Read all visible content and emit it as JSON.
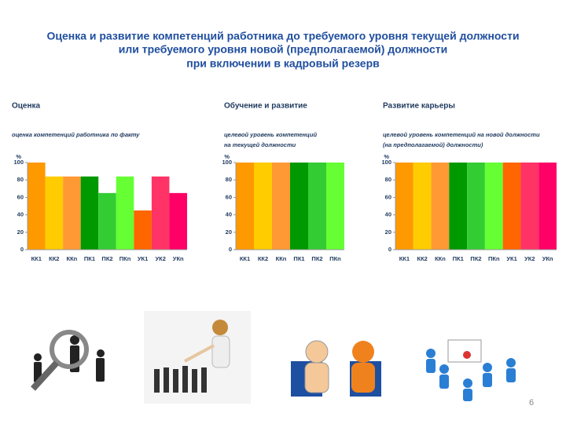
{
  "title": [
    "Оценка и развитие компетенций работника до требуемого уровня текущей должности",
    "или требуемого уровня новой (предполагаемой) должности",
    "при включении в кадровый резерв"
  ],
  "page_number": "6",
  "chart_data": [
    {
      "type": "bar",
      "title": "Оценка",
      "subtitle": [
        "оценка компетенций работника по факту"
      ],
      "y_label": "%",
      "categories": [
        "КК1",
        "КК2",
        "ККn",
        "ПК1",
        "ПК2",
        "ПКn",
        "УК1",
        "УК2",
        "УКn"
      ],
      "values": [
        100,
        84,
        84,
        84,
        65,
        84,
        45,
        84,
        65
      ],
      "colors": [
        "#ff9900",
        "#ffcc00",
        "#ff9933",
        "#009900",
        "#33cc33",
        "#66ff33",
        "#ff6600",
        "#ff3366",
        "#ff0066"
      ],
      "ylim": [
        0,
        100
      ],
      "yticks": [
        0,
        20,
        40,
        60,
        80,
        100
      ]
    },
    {
      "type": "bar",
      "title": "Обучение и развитие",
      "subtitle": [
        "целевой уровень компетенций",
        "на текущей должности"
      ],
      "y_label": "%",
      "categories": [
        "КК1",
        "КК2",
        "ККn",
        "ПК1",
        "ПК2",
        "ПКn"
      ],
      "values": [
        100,
        100,
        100,
        100,
        100,
        100
      ],
      "colors": [
        "#ff9900",
        "#ffcc00",
        "#ff9933",
        "#009900",
        "#33cc33",
        "#66ff33"
      ],
      "ylim": [
        0,
        100
      ],
      "yticks": [
        0,
        20,
        40,
        60,
        80,
        100
      ]
    },
    {
      "type": "bar",
      "title": "Развитие карьеры",
      "subtitle": [
        "целевой уровень компетенций на новой должности",
        "(на предполагаемой) должности)"
      ],
      "y_label": "%",
      "categories": [
        "КК1",
        "КК2",
        "ККn",
        "ПК1",
        "ПК2",
        "ПКn",
        "УК1",
        "УК2",
        "УКn"
      ],
      "values": [
        100,
        100,
        100,
        100,
        100,
        100,
        100,
        100,
        100
      ],
      "colors": [
        "#ff9900",
        "#ffcc00",
        "#ff9933",
        "#009900",
        "#33cc33",
        "#66ff33",
        "#ff6600",
        "#ff3366",
        "#ff0066"
      ],
      "ylim": [
        0,
        100
      ],
      "yticks": [
        0,
        20,
        40,
        60,
        80,
        100
      ]
    }
  ]
}
